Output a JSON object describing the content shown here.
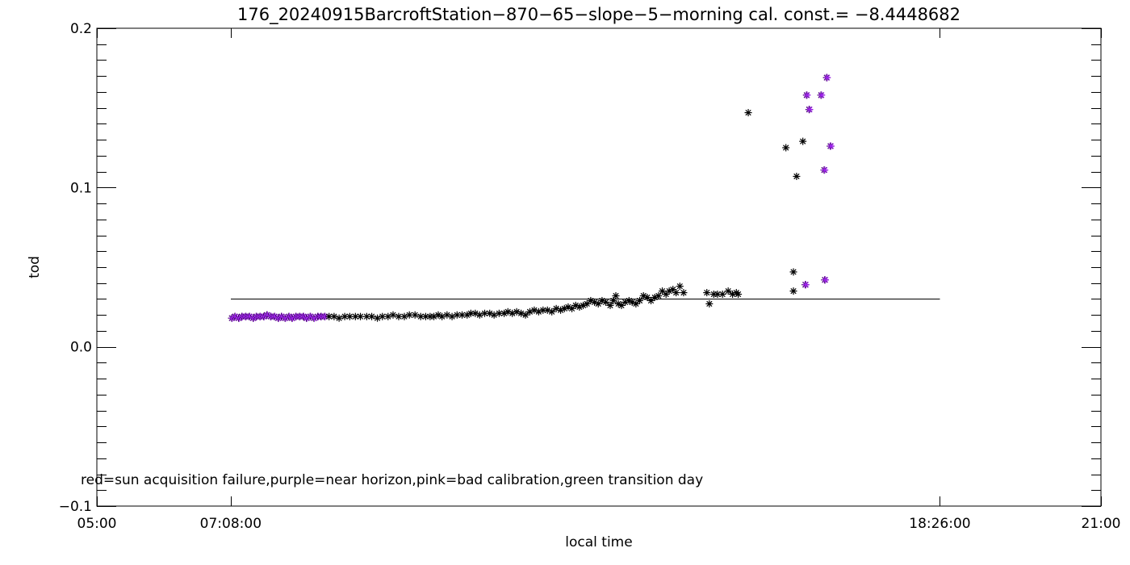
{
  "chart_data": {
    "type": "scatter",
    "title": "176_20240915BarcroftStation−870−65−slope−5−morning cal. const.= −8.4448682",
    "xlabel": "local time",
    "ylabel": "tod",
    "note": "red=sun acquisition failure,purple=near horizon,pink=bad calibration,green transition day",
    "x_ticks": [
      5.0,
      7.1333,
      18.4333,
      21.0
    ],
    "x_tick_labels": [
      "05:00",
      "07:08:00",
      "18:26:00",
      "21:00"
    ],
    "xlim": [
      5.0,
      21.0
    ],
    "ylim": [
      -0.1,
      0.2
    ],
    "y_ticks": [
      -0.1,
      0.0,
      0.1,
      0.2
    ],
    "y_tick_labels": [
      "−0.1",
      "0.0",
      "0.1",
      "0.2"
    ],
    "colors": {
      "normal": "#000000",
      "near_horizon": "#a020f0"
    },
    "reference_line": {
      "x_start": 7.1333,
      "x_end": 18.4333,
      "y": 0.03
    },
    "series": [
      {
        "category": "near_horizon",
        "points": [
          [
            7.15,
            0.018
          ],
          [
            7.2,
            0.019
          ],
          [
            7.26,
            0.018
          ],
          [
            7.31,
            0.019
          ],
          [
            7.37,
            0.019
          ],
          [
            7.43,
            0.019
          ],
          [
            7.49,
            0.018
          ],
          [
            7.54,
            0.019
          ],
          [
            7.6,
            0.019
          ],
          [
            7.66,
            0.019
          ],
          [
            7.71,
            0.02
          ],
          [
            7.77,
            0.019
          ],
          [
            7.83,
            0.019
          ],
          [
            7.89,
            0.018
          ],
          [
            7.94,
            0.019
          ],
          [
            8.0,
            0.018
          ],
          [
            8.06,
            0.019
          ],
          [
            8.11,
            0.018
          ],
          [
            8.17,
            0.019
          ],
          [
            8.23,
            0.019
          ],
          [
            8.29,
            0.019
          ],
          [
            8.34,
            0.018
          ],
          [
            8.4,
            0.019
          ],
          [
            8.46,
            0.018
          ],
          [
            8.52,
            0.019
          ],
          [
            8.57,
            0.019
          ],
          [
            8.63,
            0.019
          ],
          [
            16.31,
            0.158
          ],
          [
            16.35,
            0.149
          ],
          [
            16.54,
            0.158
          ],
          [
            16.63,
            0.169
          ],
          [
            16.59,
            0.111
          ],
          [
            16.69,
            0.126
          ],
          [
            16.29,
            0.039
          ],
          [
            16.6,
            0.042
          ]
        ]
      },
      {
        "category": "normal",
        "points": [
          [
            8.7,
            0.019
          ],
          [
            8.78,
            0.019
          ],
          [
            8.86,
            0.018
          ],
          [
            8.95,
            0.019
          ],
          [
            9.03,
            0.019
          ],
          [
            9.12,
            0.019
          ],
          [
            9.2,
            0.019
          ],
          [
            9.3,
            0.019
          ],
          [
            9.38,
            0.019
          ],
          [
            9.47,
            0.018
          ],
          [
            9.55,
            0.019
          ],
          [
            9.64,
            0.019
          ],
          [
            9.72,
            0.02
          ],
          [
            9.81,
            0.019
          ],
          [
            9.9,
            0.019
          ],
          [
            9.98,
            0.02
          ],
          [
            10.07,
            0.02
          ],
          [
            10.16,
            0.019
          ],
          [
            10.24,
            0.019
          ],
          [
            10.31,
            0.019
          ],
          [
            10.37,
            0.019
          ],
          [
            10.44,
            0.02
          ],
          [
            10.5,
            0.019
          ],
          [
            10.58,
            0.02
          ],
          [
            10.66,
            0.019
          ],
          [
            10.74,
            0.02
          ],
          [
            10.82,
            0.02
          ],
          [
            10.9,
            0.02
          ],
          [
            10.96,
            0.021
          ],
          [
            11.03,
            0.021
          ],
          [
            11.1,
            0.02
          ],
          [
            11.18,
            0.021
          ],
          [
            11.26,
            0.021
          ],
          [
            11.33,
            0.02
          ],
          [
            11.41,
            0.021
          ],
          [
            11.49,
            0.021
          ],
          [
            11.55,
            0.022
          ],
          [
            11.62,
            0.021
          ],
          [
            11.69,
            0.022
          ],
          [
            11.76,
            0.021
          ],
          [
            11.83,
            0.02
          ],
          [
            11.9,
            0.022
          ],
          [
            11.97,
            0.023
          ],
          [
            12.04,
            0.022
          ],
          [
            12.11,
            0.023
          ],
          [
            12.18,
            0.023
          ],
          [
            12.25,
            0.022
          ],
          [
            12.32,
            0.024
          ],
          [
            12.39,
            0.023
          ],
          [
            12.45,
            0.024
          ],
          [
            12.51,
            0.025
          ],
          [
            12.57,
            0.024
          ],
          [
            12.63,
            0.026
          ],
          [
            12.69,
            0.025
          ],
          [
            12.75,
            0.026
          ],
          [
            12.81,
            0.027
          ],
          [
            12.87,
            0.029
          ],
          [
            12.93,
            0.028
          ],
          [
            12.99,
            0.027
          ],
          [
            13.05,
            0.029
          ],
          [
            13.11,
            0.028
          ],
          [
            13.18,
            0.026
          ],
          [
            13.23,
            0.029
          ],
          [
            13.27,
            0.032
          ],
          [
            13.31,
            0.027
          ],
          [
            13.36,
            0.026
          ],
          [
            13.42,
            0.028
          ],
          [
            13.48,
            0.029
          ],
          [
            13.53,
            0.028
          ],
          [
            13.59,
            0.027
          ],
          [
            13.65,
            0.029
          ],
          [
            13.71,
            0.032
          ],
          [
            13.77,
            0.031
          ],
          [
            13.83,
            0.029
          ],
          [
            13.89,
            0.031
          ],
          [
            13.95,
            0.032
          ],
          [
            14.01,
            0.035
          ],
          [
            14.07,
            0.033
          ],
          [
            14.12,
            0.035
          ],
          [
            14.18,
            0.036
          ],
          [
            14.23,
            0.034
          ],
          [
            14.29,
            0.038
          ],
          [
            14.35,
            0.034
          ],
          [
            14.72,
            0.034
          ],
          [
            14.76,
            0.027
          ],
          [
            14.83,
            0.033
          ],
          [
            14.89,
            0.033
          ],
          [
            14.97,
            0.033
          ],
          [
            15.06,
            0.035
          ],
          [
            15.13,
            0.033
          ],
          [
            15.19,
            0.034
          ],
          [
            15.22,
            0.033
          ],
          [
            15.38,
            0.147
          ],
          [
            15.98,
            0.125
          ],
          [
            16.1,
            0.047
          ],
          [
            16.1,
            0.035
          ],
          [
            16.15,
            0.107
          ],
          [
            16.25,
            0.129
          ]
        ]
      }
    ]
  }
}
